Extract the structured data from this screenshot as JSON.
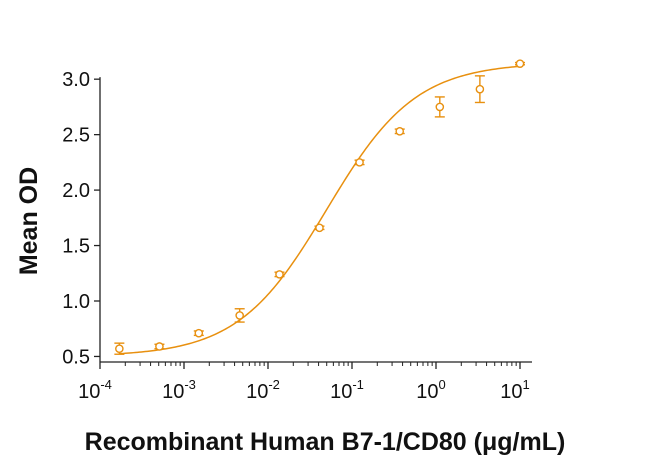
{
  "chart_data": {
    "type": "scatter",
    "xlabel": "Recombinant Human B7-1/CD80 (μg/mL)",
    "ylabel": "Mean OD",
    "xscale": "log",
    "xlim": [
      0.0001,
      10
    ],
    "ylim": [
      0.45,
      3.2
    ],
    "x_ticks": [
      {
        "value": 0.0001,
        "base": "10",
        "exp": "-4"
      },
      {
        "value": 0.001,
        "base": "10",
        "exp": "-3"
      },
      {
        "value": 0.01,
        "base": "10",
        "exp": "-2"
      },
      {
        "value": 0.1,
        "base": "10",
        "exp": "-1"
      },
      {
        "value": 1,
        "base": "10",
        "exp": "0"
      },
      {
        "value": 10,
        "base": "10",
        "exp": "1"
      }
    ],
    "y_ticks": [
      {
        "value": 0.5,
        "label": "0.5"
      },
      {
        "value": 1.0,
        "label": "1.0"
      },
      {
        "value": 1.5,
        "label": "1.5"
      },
      {
        "value": 2.0,
        "label": "2.0"
      },
      {
        "value": 2.5,
        "label": "2.5"
      },
      {
        "value": 3.0,
        "label": "3.0"
      }
    ],
    "grid": false,
    "color": "#e8900f",
    "points": [
      {
        "x": 0.00017,
        "y": 0.57,
        "err": 0.05
      },
      {
        "x": 0.00051,
        "y": 0.59,
        "err": 0.02
      },
      {
        "x": 0.0015,
        "y": 0.71,
        "err": 0.02
      },
      {
        "x": 0.0046,
        "y": 0.87,
        "err": 0.06
      },
      {
        "x": 0.0137,
        "y": 1.24,
        "err": 0.02
      },
      {
        "x": 0.041,
        "y": 1.66,
        "err": 0.015
      },
      {
        "x": 0.123,
        "y": 2.25,
        "err": 0.02
      },
      {
        "x": 0.37,
        "y": 2.53,
        "err": 0.02
      },
      {
        "x": 1.11,
        "y": 2.75,
        "err": 0.09
      },
      {
        "x": 3.33,
        "y": 2.91,
        "err": 0.12
      },
      {
        "x": 10,
        "y": 3.14,
        "err": 0.01
      }
    ],
    "fit": {
      "model": "4PL",
      "bottom": 0.5,
      "top": 3.15,
      "ec50": 0.05,
      "hill": 0.82
    }
  }
}
